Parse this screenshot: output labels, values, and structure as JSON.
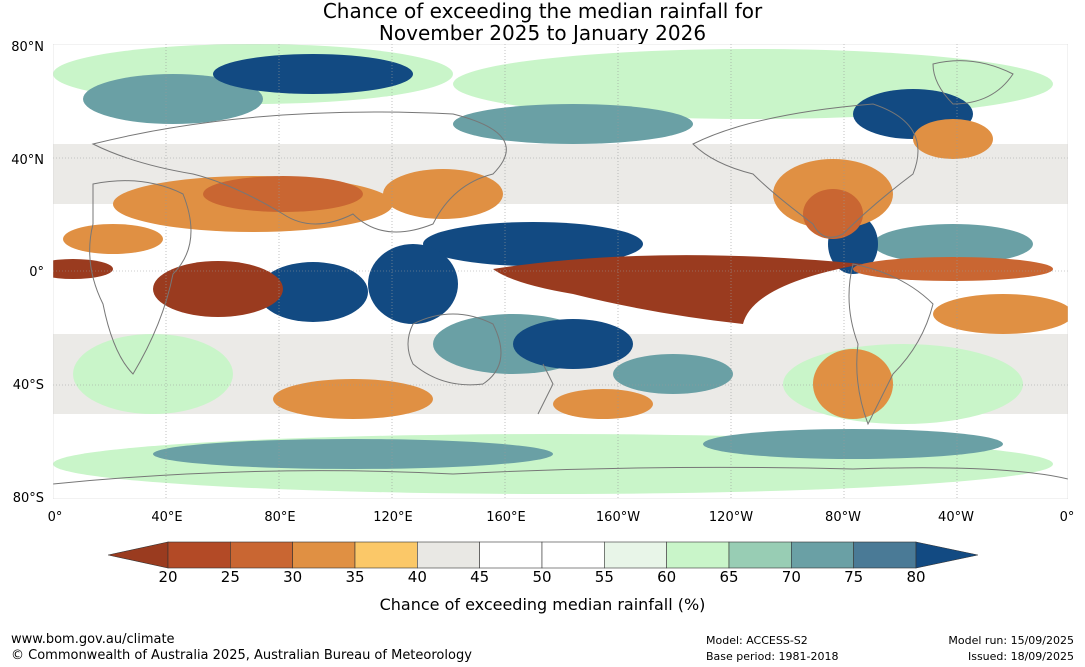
{
  "title": {
    "line1": "Chance of exceeding the median rainfall for",
    "line2": "November 2025 to January 2026"
  },
  "lat_labels": [
    "80°N",
    "40°N",
    "0°",
    "40°S",
    "80°S"
  ],
  "lon_labels": [
    "0°",
    "40°E",
    "80°E",
    "120°E",
    "160°E",
    "160°W",
    "120°W",
    "80°W",
    "40°W",
    "0°"
  ],
  "colorbar": {
    "ticks": [
      "20",
      "25",
      "30",
      "35",
      "40",
      "45",
      "50",
      "55",
      "60",
      "65",
      "70",
      "75",
      "80"
    ],
    "colors": [
      "#9a3b1f",
      "#b34a26",
      "#c96632",
      "#e09043",
      "#fbc868",
      "#e9e8e4",
      "#ffffff",
      "#ffffff",
      "#e8f5e8",
      "#c9f5c9",
      "#98cdb4",
      "#6aa0a5",
      "#4a7a96",
      "#124a82",
      "#124a82"
    ],
    "label": "Chance of exceeding median rainfall (%)"
  },
  "footer": {
    "website": "www.bom.gov.au/climate",
    "copyright": "© Commonwealth of Australia 2025, Australian Bureau of Meteorology",
    "model": "Model: ACCESS-S2",
    "base_period": "Base period: 1981-2018",
    "model_run": "Model run: 15/09/2025",
    "issued": "Issued: 18/09/2025"
  },
  "map_colors": {
    "ocean": "#ffffff",
    "dry_strong": "#9a3b1f",
    "dry": "#c96632",
    "dry_weak": "#e09043",
    "neutral": "#e9e8e4",
    "wet_weak": "#c9f5c9",
    "wet": "#6aa0a5",
    "wet_strong": "#124a82",
    "coast": "#777777"
  }
}
